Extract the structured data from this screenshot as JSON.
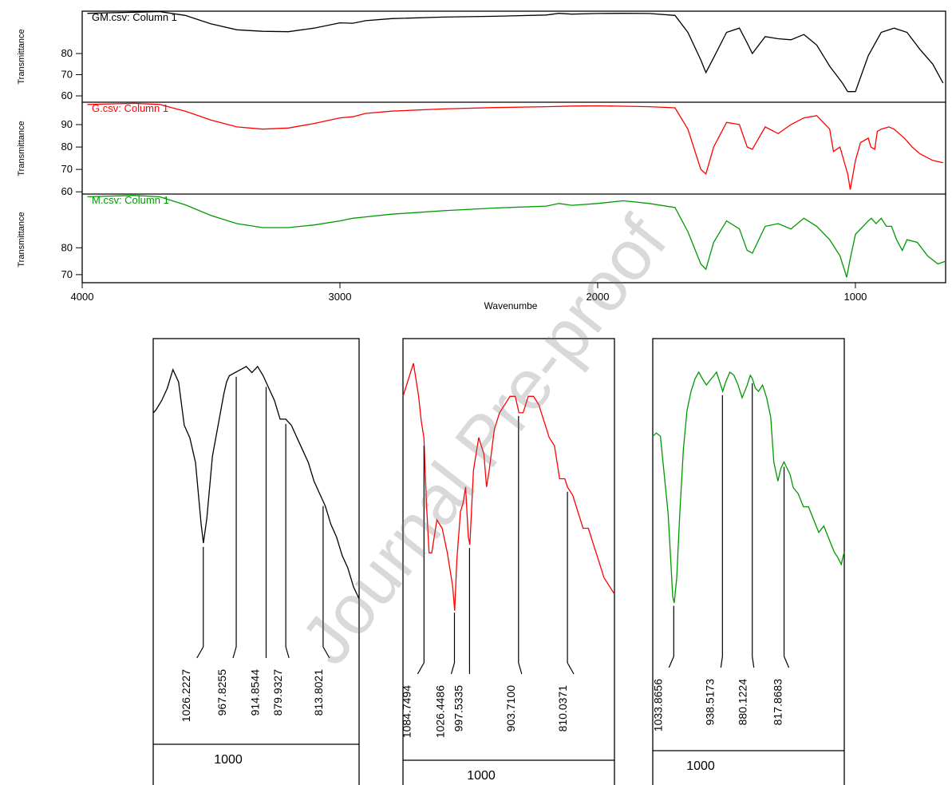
{
  "chart_data": [
    {
      "type": "line",
      "xlabel": "Wavenumbe",
      "ylabel": "Transmittance",
      "xlim": [
        4000,
        650
      ],
      "x_ticks": [
        "4000",
        "3000",
        "2000",
        "1000"
      ],
      "panels": [
        {
          "name": "GM.csv: Column 1",
          "color": "#000000",
          "ylim": [
            57,
            100
          ],
          "y_ticks": [
            "80",
            "70",
            "60"
          ],
          "x": [
            3980,
            3800,
            3700,
            3600,
            3500,
            3400,
            3300,
            3200,
            3100,
            3000,
            2950,
            2900,
            2800,
            2600,
            2400,
            2200,
            2150,
            2100,
            2000,
            1900,
            1800,
            1700,
            1650,
            1600,
            1580,
            1550,
            1500,
            1450,
            1420,
            1400,
            1350,
            1300,
            1250,
            1200,
            1150,
            1100,
            1050,
            1030,
            1000,
            950,
            900,
            850,
            800,
            750,
            700,
            660
          ],
          "y": [
            99,
            99.5,
            99.8,
            98,
            94,
            91.2,
            90.5,
            90.3,
            92,
            94.5,
            94.3,
            95.5,
            96.5,
            97.2,
            97.6,
            98.2,
            99,
            98.6,
            98.9,
            99,
            98.9,
            98,
            90,
            77,
            71,
            78,
            90,
            92,
            85,
            80,
            88,
            87,
            86.5,
            89,
            84,
            74,
            66,
            62,
            62,
            79,
            90,
            92,
            90,
            82,
            75,
            66
          ]
        },
        {
          "name": "G.csv: Column 1",
          "color": "#ff0000",
          "ylim": [
            59,
            100
          ],
          "y_ticks": [
            "90",
            "80",
            "70",
            "60"
          ],
          "x": [
            3980,
            3800,
            3700,
            3600,
            3500,
            3400,
            3300,
            3200,
            3100,
            3000,
            2950,
            2900,
            2800,
            2600,
            2400,
            2200,
            2100,
            2000,
            1900,
            1800,
            1700,
            1650,
            1600,
            1580,
            1550,
            1500,
            1450,
            1420,
            1400,
            1350,
            1300,
            1250,
            1200,
            1150,
            1100,
            1085,
            1060,
            1040,
            1030,
            1020,
            1000,
            980,
            950,
            940,
            925,
            915,
            900,
            870,
            850,
            810,
            780,
            750,
            700,
            660
          ],
          "y": [
            99,
            99.5,
            99,
            96,
            92,
            89,
            88,
            88.5,
            90.5,
            93,
            93.5,
            95,
            96,
            97,
            97.6,
            98,
            98.3,
            98.4,
            98.2,
            98,
            97.5,
            88,
            70,
            68,
            80,
            91,
            90,
            80,
            79,
            89,
            86,
            90,
            93,
            94,
            88,
            78,
            80,
            72,
            68,
            61,
            74,
            82,
            84,
            80,
            79,
            87,
            88,
            89,
            88,
            84,
            80,
            77,
            74,
            73
          ]
        },
        {
          "name": "M.csv: Column 1",
          "color": "#009900",
          "ylim": [
            67,
            100
          ],
          "y_ticks": [
            "80",
            "70"
          ],
          "x": [
            3980,
            3800,
            3700,
            3600,
            3500,
            3400,
            3300,
            3200,
            3100,
            3000,
            2950,
            2900,
            2800,
            2600,
            2400,
            2200,
            2150,
            2100,
            2000,
            1900,
            1800,
            1700,
            1650,
            1600,
            1580,
            1550,
            1500,
            1450,
            1420,
            1400,
            1350,
            1300,
            1250,
            1200,
            1150,
            1100,
            1060,
            1040,
            1034,
            1020,
            1000,
            970,
            950,
            938,
            920,
            900,
            880,
            860,
            840,
            818,
            800,
            760,
            720,
            680,
            650
          ],
          "y": [
            99,
            99.5,
            99,
            96,
            92,
            89,
            87.5,
            87.5,
            88.5,
            90,
            91,
            91.5,
            92.5,
            93.8,
            94.8,
            95.5,
            96.5,
            95.8,
            96.5,
            97.5,
            96.5,
            95,
            86,
            74,
            72,
            82,
            90,
            87,
            79,
            78,
            88,
            89,
            87,
            91,
            88,
            83,
            77,
            71,
            69,
            76,
            85,
            88,
            90,
            91,
            89,
            91,
            88,
            88,
            83,
            79,
            83,
            82,
            77,
            74,
            75
          ]
        }
      ]
    },
    {
      "type": "line",
      "series": [
        {
          "color": "#000000"
        }
      ],
      "x": [
        1115,
        1110,
        1100,
        1090,
        1080,
        1070,
        1060,
        1050,
        1040,
        1030,
        1026,
        1020,
        1010,
        1000,
        990,
        985,
        980,
        970,
        960,
        950,
        940,
        930,
        920,
        910,
        900,
        890,
        880,
        870,
        860,
        850,
        840,
        830,
        820,
        810,
        800,
        790,
        780,
        770,
        760,
        750
      ],
      "y": [
        86,
        86.5,
        88,
        90,
        93,
        91,
        84,
        82,
        78,
        68,
        65,
        69,
        79,
        84,
        89,
        91,
        92,
        92.5,
        93,
        93.5,
        92.5,
        93.5,
        92,
        90,
        88,
        85,
        85,
        84,
        82,
        80,
        78,
        75,
        73,
        71,
        68,
        66,
        63,
        61,
        58,
        56
      ]
    },
    {
      "type": "line",
      "series": [
        {
          "color": "#ff0000"
        }
      ],
      "x": [
        1125,
        1120,
        1110,
        1105,
        1100,
        1095,
        1090,
        1085,
        1080,
        1075,
        1070,
        1060,
        1050,
        1040,
        1030,
        1026,
        1022,
        1015,
        1010,
        1005,
        1000,
        997,
        990,
        980,
        970,
        965,
        960,
        950,
        940,
        930,
        920,
        910,
        903,
        895,
        885,
        875,
        865,
        855,
        845,
        835,
        825,
        815,
        810,
        800,
        790,
        780,
        770,
        760,
        750,
        740,
        730,
        720
      ],
      "y": [
        89,
        90,
        92,
        93,
        91,
        89,
        86,
        84,
        76,
        70,
        70,
        74,
        73,
        70,
        66,
        63,
        69,
        75,
        76,
        78,
        72,
        71,
        80,
        84,
        82,
        78,
        80,
        85,
        87,
        88,
        89,
        89,
        87,
        87,
        89,
        89,
        88,
        86,
        84,
        83,
        79,
        79,
        78,
        77,
        75,
        73,
        73,
        71,
        69,
        67,
        66,
        65
      ]
    },
    {
      "type": "line",
      "series": [
        {
          "color": "#009900"
        }
      ],
      "x": [
        1075,
        1068,
        1060,
        1055,
        1050,
        1045,
        1040,
        1036,
        1033,
        1028,
        1022,
        1015,
        1008,
        1000,
        992,
        985,
        978,
        970,
        960,
        950,
        944,
        938,
        932,
        924,
        916,
        908,
        900,
        890,
        884,
        880,
        874,
        868,
        860,
        852,
        844,
        838,
        830,
        824,
        818,
        812,
        806,
        800,
        790,
        780,
        770,
        760,
        750,
        740,
        730,
        720,
        712,
        706,
        700
      ],
      "y": [
        84,
        84.5,
        84,
        80,
        76,
        72,
        65,
        59,
        58,
        62,
        72,
        82,
        88,
        91,
        93,
        94,
        93,
        92,
        93,
        94,
        92.5,
        91,
        92.5,
        94,
        93.5,
        92,
        90,
        92,
        93.5,
        93,
        91.5,
        91,
        92,
        90,
        87,
        80,
        77,
        79,
        80,
        79,
        78,
        76,
        75,
        73,
        73,
        71,
        69,
        70,
        68,
        66,
        65,
        64,
        66
      ]
    }
  ],
  "peak_labels": [
    [
      "1026.2227",
      "967.8255",
      "914.8544",
      "879.9327",
      "813.8021"
    ],
    [
      "1084.7494",
      "1026.4486",
      "997.5335",
      "903.7100",
      "810.0371"
    ],
    [
      "1033.8656",
      "938.5173",
      "880.1224",
      "817.8683"
    ]
  ],
  "inset_ticks": [
    "1000",
    "1000",
    "1000"
  ],
  "watermark": "Journal Pre-proof"
}
